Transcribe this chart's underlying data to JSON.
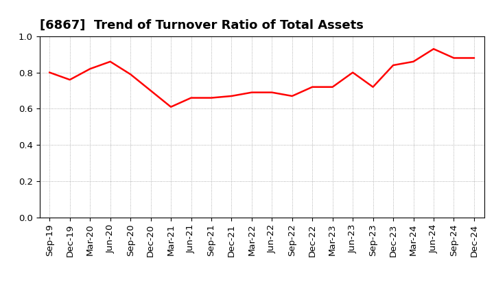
{
  "title": "[6867]  Trend of Turnover Ratio of Total Assets",
  "x_labels": [
    "Sep-19",
    "Dec-19",
    "Mar-20",
    "Jun-20",
    "Sep-20",
    "Dec-20",
    "Mar-21",
    "Jun-21",
    "Sep-21",
    "Dec-21",
    "Mar-22",
    "Jun-22",
    "Sep-22",
    "Dec-22",
    "Mar-23",
    "Jun-23",
    "Sep-23",
    "Dec-23",
    "Mar-24",
    "Jun-24",
    "Sep-24",
    "Dec-24"
  ],
  "y_values": [
    0.8,
    0.76,
    0.82,
    0.86,
    0.79,
    0.7,
    0.61,
    0.66,
    0.66,
    0.67,
    0.69,
    0.69,
    0.67,
    0.72,
    0.72,
    0.8,
    0.72,
    0.84,
    0.86,
    0.93,
    0.88,
    0.88
  ],
  "line_color": "#FF0000",
  "line_width": 1.8,
  "ylim": [
    0.0,
    1.0
  ],
  "yticks": [
    0.0,
    0.2,
    0.4,
    0.6,
    0.8,
    1.0
  ],
  "grid_color": "#999999",
  "background_color": "#ffffff",
  "title_fontsize": 13,
  "tick_fontsize": 9.5,
  "title_color": "#000000"
}
